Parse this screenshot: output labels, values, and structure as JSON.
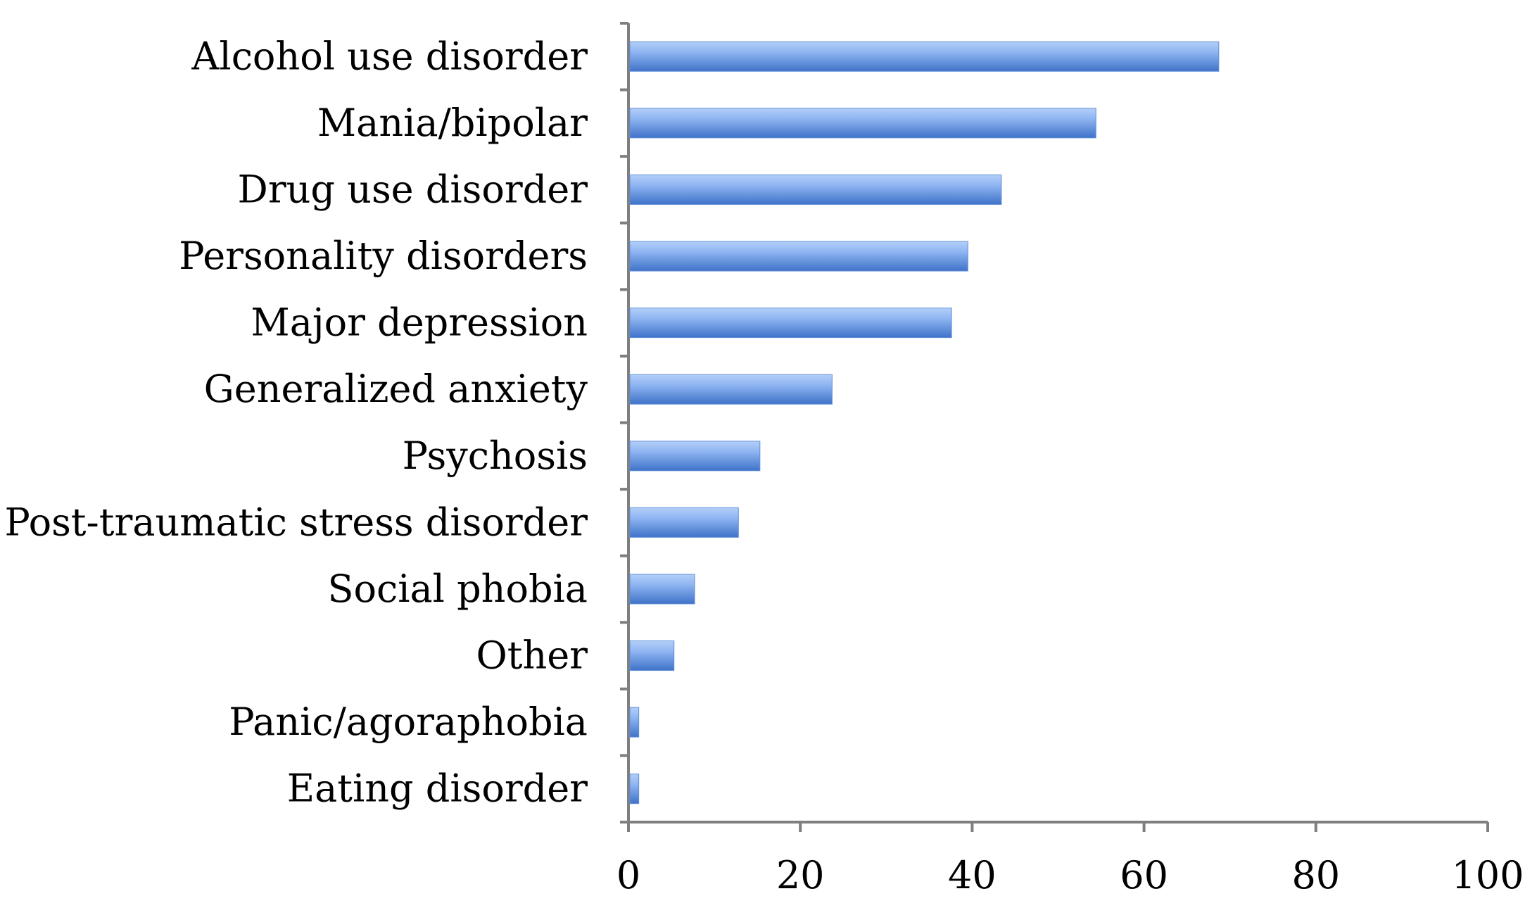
{
  "chart_data": {
    "type": "bar",
    "orientation": "horizontal",
    "categories": [
      "Alcohol use disorder",
      "Mania/bipolar",
      "Drug use disorder ",
      "Personality disorders",
      "Major depression",
      "Generalized anxiety ",
      "Psychosis ",
      "Post-traumatic stress disorder",
      "Social phobia",
      "Other",
      "Panic/agoraphobia ",
      "Eating disorder"
    ],
    "values": [
      68.7,
      54.4,
      43.4,
      39.5,
      37.6,
      23.7,
      15.3,
      12.8,
      7.7,
      5.3,
      1.2,
      1.2
    ],
    "xlim": [
      0,
      100
    ],
    "xticks": [
      "0",
      "20",
      "40",
      "60",
      "80",
      "100"
    ],
    "title": "",
    "xlabel": "",
    "ylabel": "",
    "grid": false,
    "legend": "none",
    "colors": {
      "bar_light": "#9fc0f5",
      "bar_mid": "#6b9be8",
      "bar_dark": "#3d6fc4",
      "axis": "#7f7f7f"
    }
  }
}
